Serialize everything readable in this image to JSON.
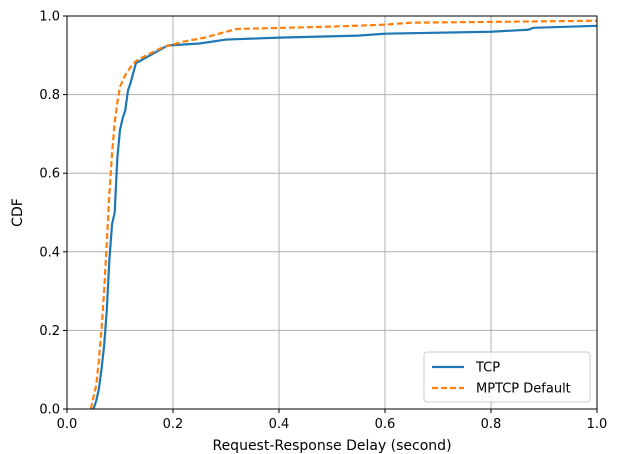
{
  "chart_data": {
    "type": "line",
    "title": "",
    "xlabel": "Request-Response Delay (second)",
    "ylabel": "CDF",
    "xlim": [
      0.0,
      1.0
    ],
    "ylim": [
      0.0,
      1.0
    ],
    "x_ticks": [
      "0.0",
      "0.2",
      "0.4",
      "0.6",
      "0.8",
      "1.0"
    ],
    "y_ticks": [
      "0.0",
      "0.2",
      "0.4",
      "0.6",
      "0.8",
      "1.0"
    ],
    "grid": true,
    "legend_position": "lower-right",
    "series": [
      {
        "name": "TCP",
        "color": "#1f77b4",
        "style": "solid",
        "points": [
          [
            0.05,
            0.0
          ],
          [
            0.055,
            0.02
          ],
          [
            0.06,
            0.05
          ],
          [
            0.065,
            0.1
          ],
          [
            0.07,
            0.16
          ],
          [
            0.075,
            0.25
          ],
          [
            0.08,
            0.38
          ],
          [
            0.085,
            0.47
          ],
          [
            0.09,
            0.5
          ],
          [
            0.095,
            0.64
          ],
          [
            0.1,
            0.71
          ],
          [
            0.105,
            0.74
          ],
          [
            0.11,
            0.76
          ],
          [
            0.115,
            0.81
          ],
          [
            0.12,
            0.83
          ],
          [
            0.13,
            0.88
          ],
          [
            0.15,
            0.895
          ],
          [
            0.17,
            0.91
          ],
          [
            0.19,
            0.925
          ],
          [
            0.25,
            0.93
          ],
          [
            0.3,
            0.94
          ],
          [
            0.4,
            0.945
          ],
          [
            0.55,
            0.95
          ],
          [
            0.6,
            0.955
          ],
          [
            0.8,
            0.96
          ],
          [
            0.87,
            0.965
          ],
          [
            0.88,
            0.97
          ],
          [
            1.0,
            0.975
          ]
        ]
      },
      {
        "name": "MPTCP Default",
        "color": "#ff7f0e",
        "style": "dashed",
        "points": [
          [
            0.045,
            0.0
          ],
          [
            0.05,
            0.03
          ],
          [
            0.055,
            0.06
          ],
          [
            0.06,
            0.12
          ],
          [
            0.065,
            0.2
          ],
          [
            0.07,
            0.3
          ],
          [
            0.075,
            0.42
          ],
          [
            0.08,
            0.55
          ],
          [
            0.085,
            0.65
          ],
          [
            0.09,
            0.73
          ],
          [
            0.095,
            0.78
          ],
          [
            0.1,
            0.82
          ],
          [
            0.11,
            0.85
          ],
          [
            0.12,
            0.87
          ],
          [
            0.13,
            0.885
          ],
          [
            0.15,
            0.9
          ],
          [
            0.18,
            0.92
          ],
          [
            0.22,
            0.935
          ],
          [
            0.26,
            0.945
          ],
          [
            0.3,
            0.96
          ],
          [
            0.32,
            0.967
          ],
          [
            0.5,
            0.973
          ],
          [
            0.6,
            0.978
          ],
          [
            0.65,
            0.983
          ],
          [
            0.8,
            0.985
          ],
          [
            1.0,
            0.988
          ]
        ]
      }
    ]
  }
}
